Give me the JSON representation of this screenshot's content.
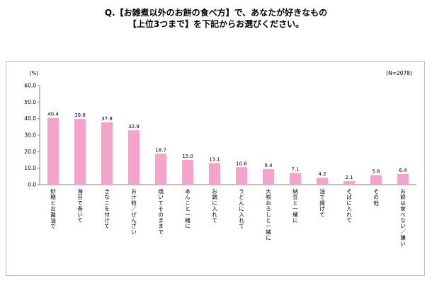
{
  "title": {
    "line1": "Q.【お雑煮以外のお餅の食べ方】で、あなたが好きなもの",
    "line2": "【上位3つまで】を下記からお選びください。"
  },
  "chart_data": {
    "type": "bar",
    "ylabel": "(%)",
    "sample_size": "(N=2078)",
    "ylim": [
      0,
      60
    ],
    "yticks": [
      "0.0",
      "10.0",
      "20.0",
      "30.0",
      "40.0",
      "50.0",
      "60.0"
    ],
    "grid": false,
    "bar_color": "#f6a3cc",
    "categories": [
      "砂糖とお醤油で",
      "海苔で巻いて",
      "きなこを付けて",
      "お汁粉／ぜんざい",
      "焼いてそのままで",
      "あんこと一緒に",
      "お鍋に入れて",
      "うどんに入れて",
      "大根おろしと一緒に",
      "納豆と一緒に",
      "油で揚げて",
      "そばに入れて",
      "その他",
      "お餅は食べない／嫌い"
    ],
    "values": [
      40.4,
      39.8,
      37.8,
      32.9,
      18.7,
      15.0,
      13.1,
      10.6,
      9.4,
      7.1,
      4.2,
      2.1,
      5.8,
      6.4
    ],
    "value_labels": [
      "40.4",
      "39.8",
      "37.8",
      "32.9",
      "18.7",
      "15.0",
      "13.1",
      "10.6",
      "9.4",
      "7.1",
      "4.2",
      "2.1",
      "5.8",
      "6.4"
    ]
  }
}
